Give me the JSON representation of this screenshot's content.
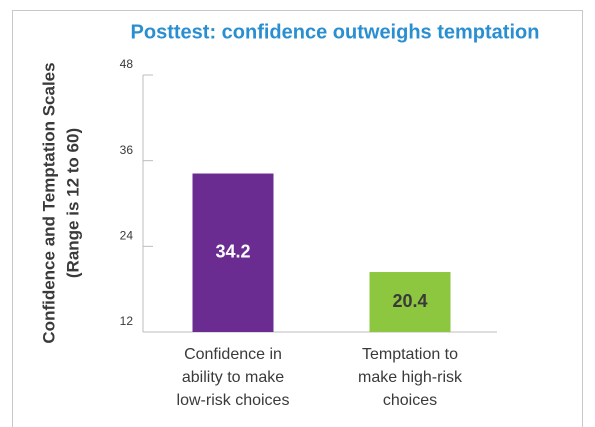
{
  "chart_data": {
    "type": "bar",
    "title": "Posttest: confidence outweighs temptation",
    "ylabel": [
      "Confidence and Temptation Scales",
      "(Range is 12 to 60)"
    ],
    "categories": [
      [
        "Confidence in",
        "ability to make",
        "low-risk choices"
      ],
      [
        "Temptation to",
        "make high-risk",
        "choices"
      ]
    ],
    "values": [
      34.2,
      20.4
    ],
    "colors": [
      "#6b2c91",
      "#8dc63f"
    ],
    "label_colors": [
      "#ffffff",
      "#3a3a3a"
    ],
    "ylim": [
      12,
      48
    ],
    "yticks": [
      12,
      24,
      36,
      48
    ],
    "grid": false
  }
}
